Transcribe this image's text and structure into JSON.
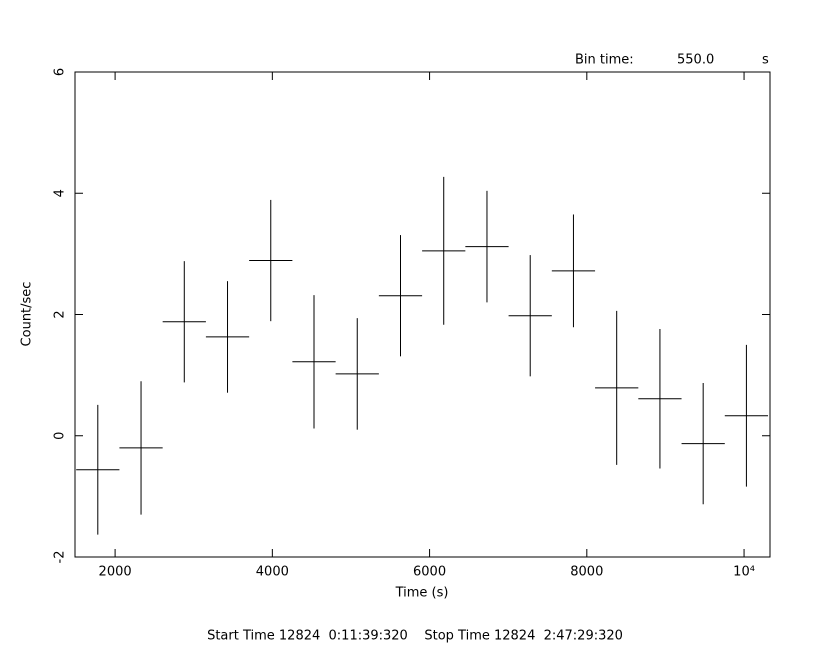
{
  "chart_data": {
    "type": "errorbar",
    "x_label": "Time (s)",
    "y_label": "Count/sec",
    "bin_time_label": "Bin time:",
    "bin_time": {
      "value": 550,
      "label": "550.0"
    },
    "bin_time_unit": "s",
    "footer": "Start Time 12824  0:11:39:320    Stop Time 12824  2:47:29:320",
    "x": [
      1780,
      2330,
      2880,
      3430,
      3980,
      4530,
      5080,
      5630,
      6180,
      6730,
      7280,
      7830,
      8380,
      8930,
      9480,
      10030
    ],
    "values": [
      -0.56,
      -0.2,
      1.88,
      1.63,
      2.89,
      1.22,
      1.02,
      2.31,
      3.05,
      3.12,
      1.98,
      2.72,
      0.79,
      0.61,
      -0.13,
      0.33
    ],
    "errors": [
      1.07,
      1.1,
      1.0,
      0.92,
      1.0,
      1.1,
      0.92,
      1.0,
      1.22,
      0.92,
      1.0,
      0.93,
      1.27,
      1.15,
      1.0,
      1.17
    ],
    "color": "#000000",
    "xlim": [
      1490,
      10330
    ],
    "ylim": [
      -2,
      6
    ],
    "xticks": [
      2000,
      4000,
      6000,
      8000,
      {
        "value": 10000,
        "label": "10⁴"
      }
    ],
    "yticks": [
      -2,
      0,
      2,
      4,
      6
    ]
  }
}
